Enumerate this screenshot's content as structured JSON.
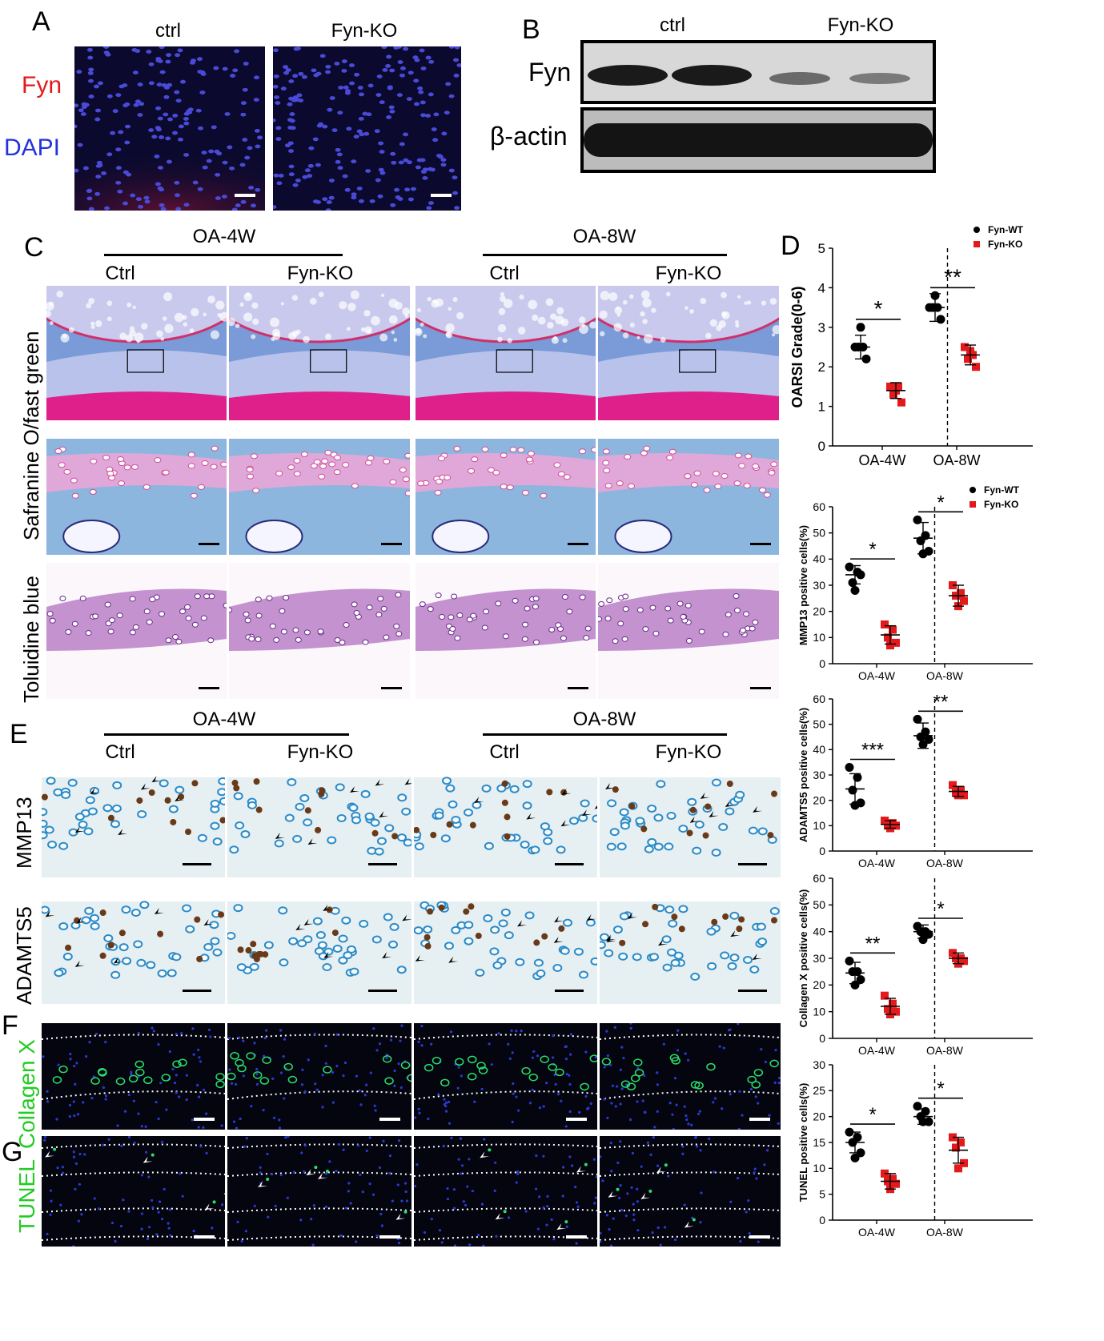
{
  "panels": {
    "A": "A",
    "B": "B",
    "C": "C",
    "D": "D",
    "E": "E",
    "F": "F",
    "G": "G"
  },
  "panelA": {
    "col1": "ctrl",
    "col2": "Fyn-KO",
    "label_fyn": "Fyn",
    "label_dapi": "DAPI"
  },
  "panelB": {
    "col1": "ctrl",
    "col2": "Fyn-KO",
    "row1": "Fyn",
    "row2": "β-actin"
  },
  "panelC": {
    "group1": "OA-4W",
    "group2": "OA-8W",
    "cols": [
      "Ctrl",
      "Fyn-KO",
      "Ctrl",
      "Fyn-KO"
    ],
    "row_safranin": "Safranine O/fast green",
    "row_toluidine": "Toluidine blue"
  },
  "panelE": {
    "group1": "OA-4W",
    "group2": "OA-8W",
    "cols": [
      "Ctrl",
      "Fyn-KO",
      "Ctrl",
      "Fyn-KO"
    ],
    "row1": "MMP13",
    "row2": "ADAMTS5"
  },
  "panelF": {
    "row": "Collagen X"
  },
  "panelG": {
    "row": "TUNEL"
  },
  "colors": {
    "wt": "#000000",
    "ko": "#e3191c",
    "fyn_red": "#e3191c",
    "dapi_blue": "#2233dd",
    "green": "#22cc22"
  },
  "chart_data": [
    {
      "type": "scatter",
      "ylabel": "OARSI Grade(0-6)",
      "categories": [
        "OA-4W",
        "OA-8W"
      ],
      "ylim": [
        0,
        5
      ],
      "yticks": [
        0,
        1,
        2,
        3,
        4,
        5
      ],
      "legend": [
        "Fyn-WT",
        "Fyn-KO"
      ],
      "legend_position": "top-right",
      "series": [
        {
          "name": "Fyn-WT",
          "group_values": [
            [
              2.5,
              2.5,
              2.5,
              2.2,
              3.0
            ],
            [
              3.5,
              3.5,
              3.5,
              3.2,
              3.8
            ]
          ],
          "mean": [
            2.5,
            3.5
          ],
          "sd": [
            0.3,
            0.35
          ]
        },
        {
          "name": "Fyn-KO",
          "group_values": [
            [
              1.5,
              1.5,
              1.3,
              1.1,
              1.4
            ],
            [
              2.5,
              2.3,
              2.2,
              2.0,
              2.4
            ]
          ],
          "mean": [
            1.4,
            2.3
          ],
          "sd": [
            0.2,
            0.25
          ]
        }
      ],
      "significance": [
        "*",
        "**"
      ]
    },
    {
      "type": "scatter",
      "ylabel": "MMP13 positive cells(%)",
      "categories": [
        "OA-4W",
        "OA-8W"
      ],
      "ylim": [
        0,
        60
      ],
      "yticks": [
        0,
        10,
        20,
        30,
        40,
        50,
        60
      ],
      "legend": [
        "Fyn-WT",
        "Fyn-KO"
      ],
      "legend_position": "top-right",
      "series": [
        {
          "name": "Fyn-WT",
          "group_values": [
            [
              37,
              35,
              31,
              34,
              28
            ],
            [
              55,
              49,
              47,
              43,
              42
            ]
          ],
          "mean": [
            34,
            48
          ],
          "sd": [
            3.5,
            6
          ]
        },
        {
          "name": "Fyn-KO",
          "group_values": [
            [
              15,
              13,
              10,
              8,
              7
            ],
            [
              30,
              27,
              26,
              24,
              22
            ]
          ],
          "mean": [
            11,
            26
          ],
          "sd": [
            3.5,
            4
          ]
        }
      ],
      "significance": [
        "*",
        "*"
      ]
    },
    {
      "type": "scatter",
      "ylabel": "ADAMTS5 positive cells(%)",
      "categories": [
        "OA-4W",
        "OA-8W"
      ],
      "ylim": [
        0,
        60
      ],
      "yticks": [
        0,
        10,
        20,
        30,
        40,
        50,
        60
      ],
      "series": [
        {
          "name": "Fyn-WT",
          "group_values": [
            [
              33,
              29,
              24,
              19,
              18
            ],
            [
              52,
              47,
              45,
              44,
              42
            ]
          ],
          "mean": [
            24.5,
            45.5
          ],
          "sd": [
            6,
            5
          ]
        },
        {
          "name": "Fyn-KO",
          "group_values": [
            [
              12,
              11,
              10,
              10,
              9
            ],
            [
              26,
              24,
              23,
              22,
              22
            ]
          ],
          "mean": [
            10.5,
            23.5
          ],
          "sd": [
            1.5,
            2
          ]
        }
      ],
      "significance": [
        "***",
        "**"
      ]
    },
    {
      "type": "scatter",
      "ylabel": "Collagen X positive cells(%)",
      "categories": [
        "OA-4W",
        "OA-8W"
      ],
      "ylim": [
        0,
        60
      ],
      "yticks": [
        0,
        10,
        20,
        30,
        40,
        50,
        60
      ],
      "series": [
        {
          "name": "Fyn-WT",
          "group_values": [
            [
              29,
              25,
              25,
              22,
              20
            ],
            [
              42,
              40,
              40,
              39,
              37
            ]
          ],
          "mean": [
            24.5,
            40
          ],
          "sd": [
            4,
            2.5
          ]
        },
        {
          "name": "Fyn-KO",
          "group_values": [
            [
              16,
              13,
              11,
              10,
              9
            ],
            [
              32,
              30,
              30,
              29,
              28
            ]
          ],
          "mean": [
            12,
            30
          ],
          "sd": [
            3,
            2
          ]
        }
      ],
      "significance": [
        "**",
        "*"
      ]
    },
    {
      "type": "scatter",
      "ylabel": "TUNEL positive cells(%)",
      "categories": [
        "OA-4W",
        "OA-8W"
      ],
      "ylim": [
        0,
        30
      ],
      "yticks": [
        0,
        5,
        10,
        15,
        20,
        25,
        30
      ],
      "series": [
        {
          "name": "Fyn-WT",
          "group_values": [
            [
              17,
              16,
              15,
              13,
              12
            ],
            [
              22,
              21,
              20,
              19,
              19
            ]
          ],
          "mean": [
            15,
            20
          ],
          "sd": [
            2,
            1.5
          ]
        },
        {
          "name": "Fyn-KO",
          "group_values": [
            [
              9,
              8,
              7.5,
              7,
              6
            ],
            [
              16,
              15,
              14,
              11,
              10
            ]
          ],
          "mean": [
            7.5,
            13.5
          ],
          "sd": [
            1.5,
            2.5
          ]
        }
      ],
      "significance": [
        "*",
        "*"
      ]
    }
  ]
}
